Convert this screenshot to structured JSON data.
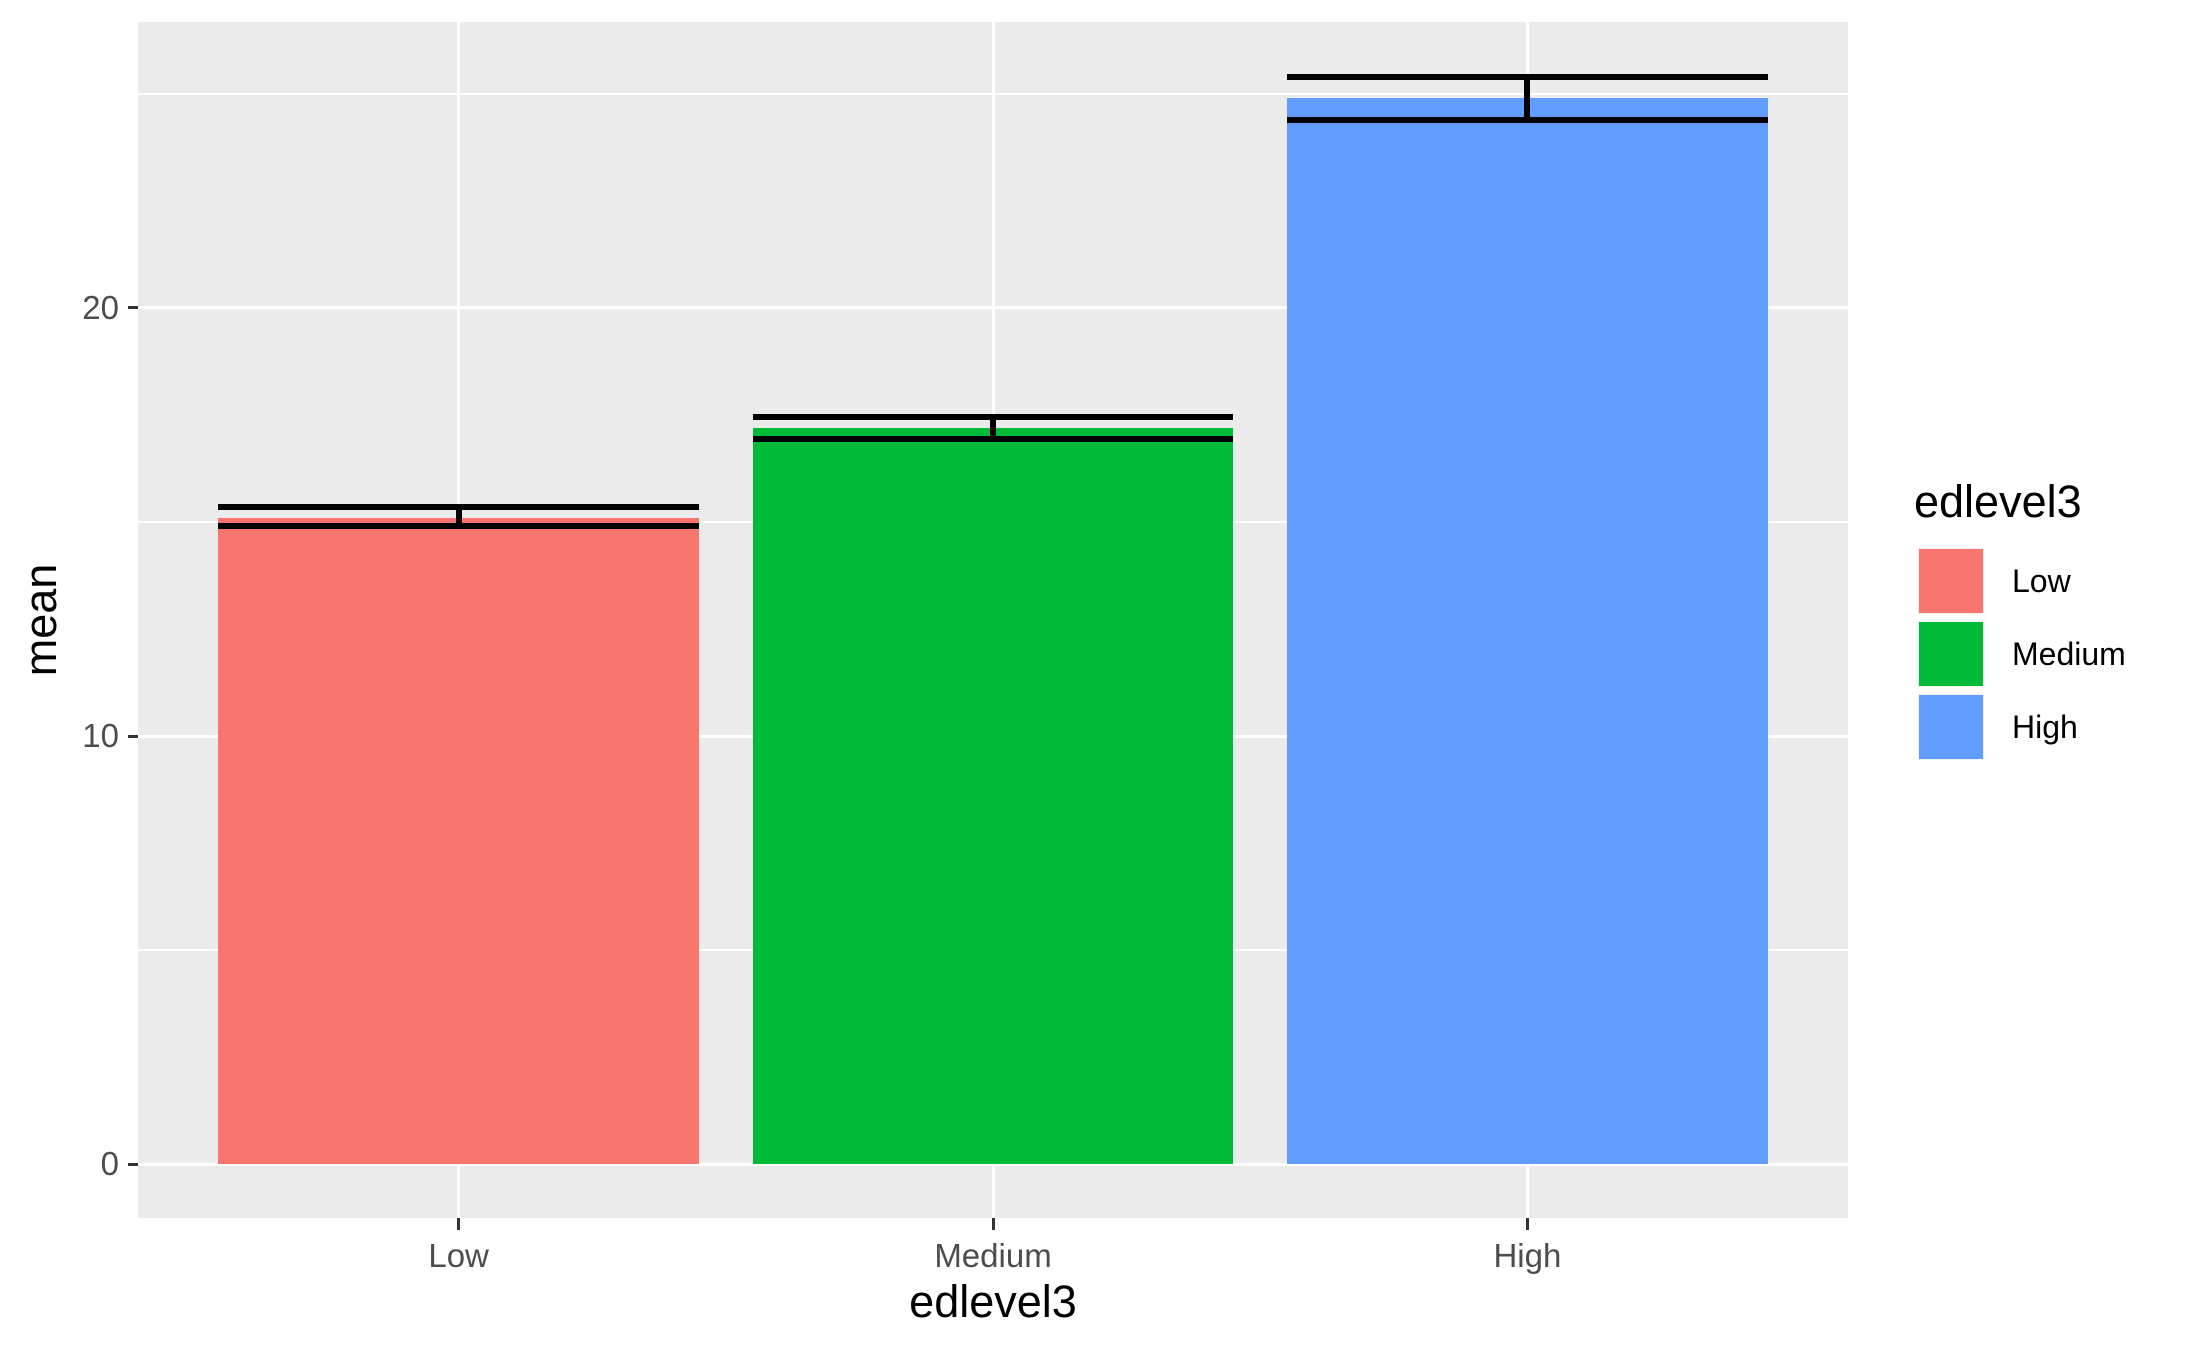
{
  "chart_data": {
    "type": "bar",
    "title": "",
    "xlabel": "edlevel3",
    "ylabel": "mean",
    "categories": [
      "Low",
      "Medium",
      "High"
    ],
    "values": [
      15.1,
      17.2,
      24.9
    ],
    "error_upper": [
      15.35,
      17.45,
      25.4
    ],
    "error_lower": [
      14.9,
      16.95,
      24.4
    ],
    "bar_colors": [
      "#F8766D",
      "#00BA38",
      "#619CFF"
    ],
    "y_ticks": [
      0,
      10,
      20
    ],
    "y_tick_labels": [
      "0",
      "10",
      "20"
    ],
    "y_minor_ticks": [
      5,
      15,
      25
    ],
    "ylim": [
      -1.26,
      26.68
    ],
    "grid": "on",
    "panel_background": "#EBEBEB",
    "gridline_color": "#FFFFFF",
    "errorbar_color": "#000000",
    "legend": {
      "position": "right",
      "title": "edlevel3",
      "entries": [
        {
          "label": "Low",
          "color": "#F8766D"
        },
        {
          "label": "Medium",
          "color": "#00BA38"
        },
        {
          "label": "High",
          "color": "#619CFF"
        }
      ]
    }
  }
}
